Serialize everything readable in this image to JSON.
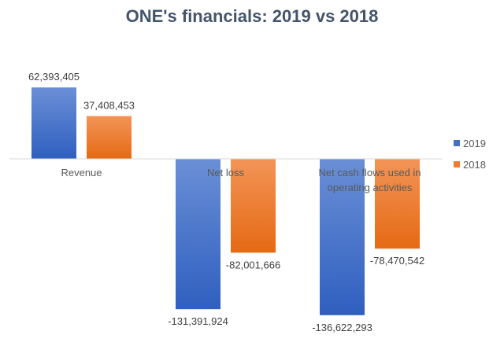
{
  "chart_data": {
    "type": "bar",
    "title": "ONE's financials: 2019 vs 2018",
    "categories": [
      "Revenue",
      "Net loss",
      "Net cash flows used in operating activities"
    ],
    "category_lines": [
      [
        "Revenue"
      ],
      [
        "Net loss"
      ],
      [
        "Net cash flows used in",
        "operating activities"
      ]
    ],
    "series": [
      {
        "name": "2019",
        "color": "#4472c4",
        "values": [
          62393405,
          -131391924,
          -136622293
        ],
        "labels": [
          "62,393,405",
          "-131,391,924",
          "-136,622,293"
        ]
      },
      {
        "name": "2018",
        "color": "#ed7d31",
        "values": [
          37408453,
          -82001666,
          -78470542
        ],
        "labels": [
          "37,408,453",
          "-82,001,666",
          "-78,470,542"
        ]
      }
    ],
    "xlabel": "",
    "ylabel": "",
    "grid": false,
    "legend": "right"
  }
}
